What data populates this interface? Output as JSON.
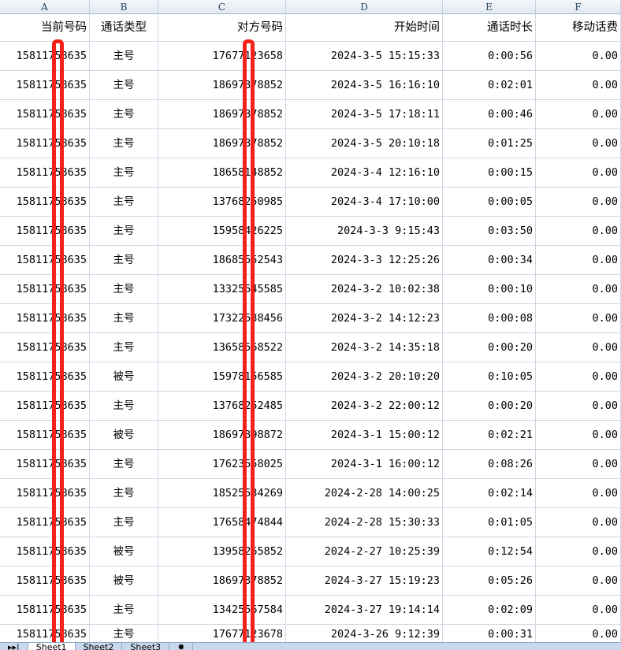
{
  "columns": [
    "A",
    "B",
    "C",
    "D",
    "E",
    "F"
  ],
  "headers": [
    "当前号码",
    "通话类型",
    "对方号码",
    "开始时间",
    "通话时长",
    "移动话费"
  ],
  "rows": [
    [
      "15811758635",
      "主号",
      "17677123658",
      "2024-3-5 15:15:33",
      "0:00:56",
      "0.00"
    ],
    [
      "15811758635",
      "主号",
      "18697378852",
      "2024-3-5 16:16:10",
      "0:02:01",
      "0.00"
    ],
    [
      "15811758635",
      "主号",
      "18697378852",
      "2024-3-5 17:18:11",
      "0:00:46",
      "0.00"
    ],
    [
      "15811758635",
      "主号",
      "18697378852",
      "2024-3-5 20:10:18",
      "0:01:25",
      "0.00"
    ],
    [
      "15811758635",
      "主号",
      "18658148852",
      "2024-3-4 12:16:10",
      "0:00:15",
      "0.00"
    ],
    [
      "15811758635",
      "主号",
      "13768250985",
      "2024-3-4 17:10:00",
      "0:00:05",
      "0.00"
    ],
    [
      "15811758635",
      "主号",
      "15958426225",
      "2024-3-3 9:15:43",
      "0:03:50",
      "0.00"
    ],
    [
      "15811758635",
      "主号",
      "18685552543",
      "2024-3-3 12:25:26",
      "0:00:34",
      "0.00"
    ],
    [
      "15811758635",
      "主号",
      "13325545585",
      "2024-3-2 10:02:38",
      "0:00:10",
      "0.00"
    ],
    [
      "15811758635",
      "主号",
      "17322538456",
      "2024-3-2 14:12:23",
      "0:00:08",
      "0.00"
    ],
    [
      "15811758635",
      "主号",
      "13658568522",
      "2024-3-2 14:35:18",
      "0:00:20",
      "0.00"
    ],
    [
      "15811758635",
      "被号",
      "15978156585",
      "2024-3-2 20:10:20",
      "0:10:05",
      "0.00"
    ],
    [
      "15811758635",
      "主号",
      "13768252485",
      "2024-3-2 22:00:12",
      "0:00:20",
      "0.00"
    ],
    [
      "15811758635",
      "被号",
      "18697398872",
      "2024-3-1 15:00:12",
      "0:02:21",
      "0.00"
    ],
    [
      "15811758635",
      "主号",
      "17623558025",
      "2024-3-1 16:00:12",
      "0:08:26",
      "0.00"
    ],
    [
      "15811758635",
      "主号",
      "18525534269",
      "2024-2-28 14:00:25",
      "0:02:14",
      "0.00"
    ],
    [
      "15811758635",
      "主号",
      "17658474844",
      "2024-2-28 15:30:33",
      "0:01:05",
      "0.00"
    ],
    [
      "15811758635",
      "被号",
      "13958265852",
      "2024-2-27 10:25:39",
      "0:12:54",
      "0.00"
    ],
    [
      "15811758635",
      "被号",
      "18697378852",
      "2024-3-27 15:19:23",
      "0:05:26",
      "0.00"
    ],
    [
      "15811758635",
      "主号",
      "13425567584",
      "2024-3-27 19:14:14",
      "0:02:09",
      "0.00"
    ],
    [
      "15811758635",
      "主号",
      "17677123678",
      "2024-3-26 9:12:39",
      "0:00:31",
      "0.00"
    ]
  ],
  "sheet_tabs": [
    "Sheet1",
    "Sheet2",
    "Sheet3"
  ],
  "highlight_color": "#f2221a"
}
